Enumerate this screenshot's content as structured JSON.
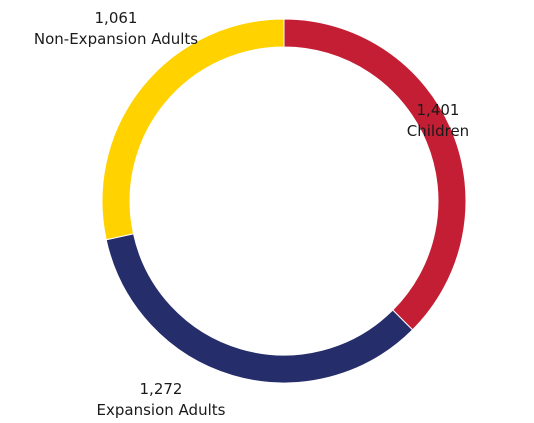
{
  "chart_data": {
    "type": "pie",
    "variant": "donut",
    "title": "",
    "categories": [
      "Children",
      "Expansion Adults",
      "Non-Expansion Adults"
    ],
    "values": [
      1401,
      1272,
      1061
    ],
    "value_labels": [
      "1,401",
      "1,272",
      "1,061"
    ],
    "colors": [
      "#C41E34",
      "#252D6B",
      "#FFD200"
    ],
    "legend": "none",
    "start_angle": "12 o'clock",
    "direction": "clockwise"
  }
}
